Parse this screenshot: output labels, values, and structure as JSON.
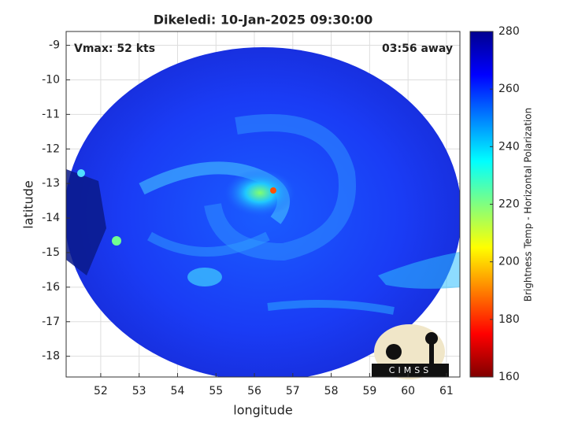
{
  "chart_data": {
    "type": "image",
    "title": "Dikeledi: 10-Jan-2025 09:30:00",
    "annotations": [
      "Vmax: 52 kts",
      "03:56 away"
    ],
    "xlabel": "longitude",
    "ylabel": "latitude",
    "xlim": [
      51.1,
      61.35
    ],
    "xticks": [
      52,
      53,
      54,
      55,
      56,
      57,
      58,
      59,
      60,
      61
    ],
    "ylim": [
      -18.6,
      -8.6
    ],
    "yticks": [
      -9,
      -10,
      -11,
      -12,
      -13,
      -14,
      -15,
      -16,
      -17,
      -18
    ],
    "grid": true,
    "colorbar": {
      "label": "Brightness Temp - Horizontal Polarization",
      "colormap": "jet-reversed",
      "lim": [
        160,
        280
      ],
      "ticks": [
        160,
        180,
        200,
        220,
        240,
        260,
        280
      ]
    },
    "logo": "CIMSS"
  }
}
